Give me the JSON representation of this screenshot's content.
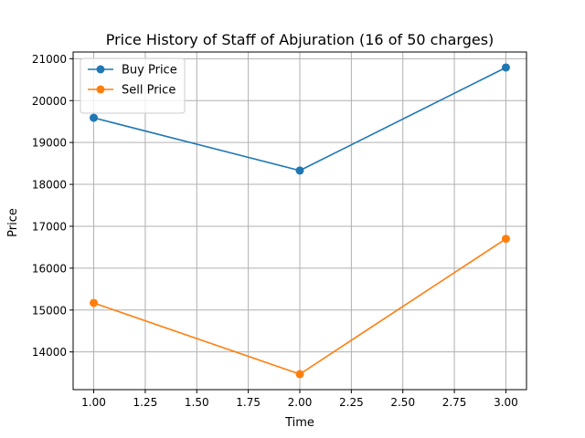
{
  "chart_data": {
    "type": "line",
    "title": "Price History of Staff of Abjuration (16 of 50 charges)",
    "xlabel": "Time",
    "ylabel": "Price",
    "x": [
      1,
      2,
      3
    ],
    "series": [
      {
        "name": "Buy Price",
        "values": [
          19590,
          18330,
          20790
        ],
        "color": "#1f77b4"
      },
      {
        "name": "Sell Price",
        "values": [
          15170,
          13470,
          16700
        ],
        "color": "#ff7f0e"
      }
    ],
    "xlim": [
      0.9,
      3.1
    ],
    "ylim": [
      13100,
      21160
    ],
    "xticks": [
      1.0,
      1.25,
      1.5,
      1.75,
      2.0,
      2.25,
      2.5,
      2.75,
      3.0
    ],
    "xtick_labels": [
      "1.00",
      "1.25",
      "1.50",
      "1.75",
      "2.00",
      "2.25",
      "2.50",
      "2.75",
      "3.00"
    ],
    "yticks": [
      14000,
      15000,
      16000,
      17000,
      18000,
      19000,
      20000,
      21000
    ],
    "ytick_labels": [
      "14000",
      "15000",
      "16000",
      "17000",
      "18000",
      "19000",
      "20000",
      "21000"
    ],
    "grid": true,
    "markers": true,
    "legend_position": "upper-left"
  }
}
